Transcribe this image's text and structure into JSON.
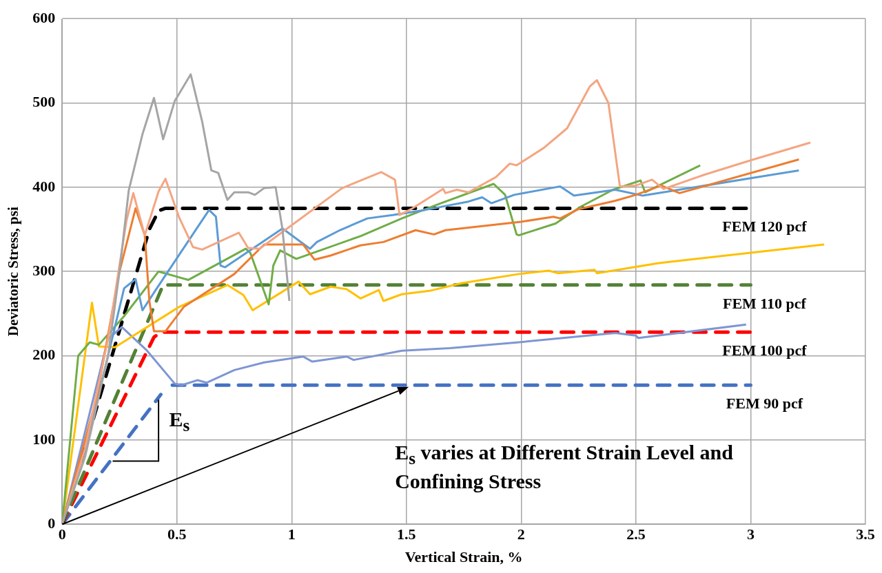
{
  "chart_data": {
    "type": "line",
    "xlabel": "Vertical Strain, %",
    "ylabel": "Deviatoric Stress, psi",
    "xlim": [
      0,
      3.5
    ],
    "xticks": [
      0,
      0.5,
      1,
      1.5,
      2,
      2.5,
      3,
      3.5
    ],
    "ylim": [
      0,
      600
    ],
    "yticks": [
      0,
      100,
      200,
      300,
      400,
      500,
      600
    ],
    "grid": true,
    "annotations": [
      {
        "text": "E$_{s}$",
        "x": 0.43,
        "y": 154
      },
      "E$_{s}$ varies at Different Strain Level and Confining Stress"
    ],
    "series": [
      {
        "color": "#a5a5a5",
        "x": [
          0,
          0.1,
          0.2,
          0.25,
          0.29,
          0.35,
          0.4,
          0.44,
          0.49,
          0.56,
          0.61,
          0.65,
          0.68,
          0.72,
          0.75,
          0.81,
          0.84,
          0.88,
          0.93,
          0.96,
          0.99
        ],
        "values": [
          0,
          80,
          200,
          300,
          396,
          463,
          506,
          457,
          502,
          534,
          478,
          420,
          417,
          385,
          394,
          394,
          391,
          399,
          400,
          350,
          265
        ]
      },
      {
        "color": "#f4a582",
        "x": [
          0,
          0.1,
          0.2,
          0.28,
          0.31,
          0.36,
          0.42,
          0.45,
          0.51,
          0.57,
          0.61,
          0.77,
          0.81,
          0.86,
          1.0,
          1.22,
          1.39,
          1.45,
          1.47,
          1.52,
          1.66,
          1.67,
          1.72,
          1.77,
          1.89,
          1.95,
          1.98,
          2.1,
          2.2,
          2.3,
          2.33,
          2.38,
          2.43,
          2.5,
          2.57,
          2.62,
          2.8,
          3.0,
          3.26
        ],
        "values": [
          0,
          90,
          220,
          360,
          393,
          343,
          395,
          410,
          364,
          329,
          326,
          346,
          328,
          327,
          355,
          399,
          418,
          409,
          367,
          374,
          398,
          393,
          397,
          394,
          412,
          428,
          426,
          447,
          470,
          520,
          527,
          500,
          401,
          402,
          409,
          398,
          415,
          432,
          453
        ]
      },
      {
        "color": "#ed7d31",
        "x": [
          0,
          0.15,
          0.25,
          0.32,
          0.36,
          0.38,
          0.4,
          0.45,
          0.53,
          0.75,
          0.88,
          1.05,
          1.1,
          1.17,
          1.3,
          1.4,
          1.54,
          1.62,
          1.67,
          2.0,
          2.14,
          2.17,
          2.25,
          2.41,
          2.5,
          2.61,
          2.69,
          3.21
        ],
        "values": [
          0,
          150,
          300,
          375,
          343,
          265,
          229,
          229,
          258,
          297,
          332,
          332,
          314,
          319,
          331,
          335,
          349,
          344,
          349,
          359,
          365,
          363,
          374,
          384,
          391,
          402,
          393,
          433
        ]
      },
      {
        "color": "#5b9bd5",
        "x": [
          0,
          0.1,
          0.2,
          0.27,
          0.32,
          0.35,
          0.41,
          0.64,
          0.67,
          0.69,
          0.71,
          0.96,
          1.08,
          1.11,
          1.21,
          1.33,
          1.44,
          1.58,
          1.77,
          1.83,
          1.87,
          1.97,
          2.17,
          2.23,
          2.41,
          2.53,
          3.21
        ],
        "values": [
          0,
          90,
          200,
          280,
          291,
          254,
          279,
          373,
          365,
          307,
          305,
          351,
          327,
          335,
          349,
          363,
          367,
          373,
          383,
          388,
          381,
          391,
          401,
          390,
          397,
          390,
          420
        ]
      },
      {
        "color": "#70ad47",
        "x": [
          0,
          0.07,
          0.12,
          0.16,
          0.27,
          0.42,
          0.55,
          0.8,
          0.82,
          0.9,
          0.92,
          0.95,
          1.02,
          1.3,
          1.48,
          1.64,
          1.88,
          1.93,
          1.98,
          1.99,
          2.15,
          2.26,
          2.4,
          2.52,
          2.54,
          2.78
        ],
        "values": [
          0,
          200,
          216,
          213,
          247,
          300,
          290,
          327,
          322,
          261,
          307,
          325,
          315,
          342,
          363,
          380,
          404,
          391,
          344,
          343,
          357,
          377,
          397,
          408,
          394,
          426
        ]
      },
      {
        "color": "#ffc000",
        "x": [
          0,
          0.13,
          0.16,
          0.23,
          0.51,
          0.72,
          0.79,
          0.83,
          1.03,
          1.08,
          1.17,
          1.24,
          1.3,
          1.38,
          1.4,
          1.48,
          1.6,
          1.74,
          1.99,
          2.12,
          2.16,
          2.32,
          2.33,
          2.6,
          3.32
        ],
        "values": [
          0,
          263,
          211,
          210,
          258,
          284,
          272,
          254,
          288,
          273,
          282,
          279,
          268,
          278,
          265,
          273,
          277,
          286,
          297,
          301,
          298,
          302,
          298,
          310,
          332
        ]
      },
      {
        "color": "#7f96d3",
        "x": [
          0,
          0.1,
          0.2,
          0.26,
          0.37,
          0.49,
          0.52,
          0.59,
          0.63,
          0.75,
          0.88,
          1.05,
          1.09,
          1.24,
          1.27,
          1.48,
          1.69,
          1.99,
          2.41,
          2.5,
          2.51,
          2.98
        ],
        "values": [
          0,
          110,
          220,
          234,
          206,
          167,
          165,
          171,
          168,
          183,
          192,
          199,
          193,
          199,
          195,
          206,
          209,
          216,
          227,
          224,
          221,
          237
        ]
      },
      {
        "name": "FEM 120 pcf",
        "color": "#000000",
        "line_style": "dashed",
        "x": [
          0,
          0.38,
          0.42,
          0.45,
          3.0
        ],
        "values": [
          0,
          350,
          372,
          375,
          375
        ]
      },
      {
        "name": "FEM 110 pcf",
        "color": "#538135",
        "line_style": "dashed",
        "x": [
          0,
          0.44,
          3.0
        ],
        "values": [
          0,
          284,
          284
        ]
      },
      {
        "name": "FEM 100 pcf",
        "color": "#ff0000",
        "line_style": "dashed",
        "x": [
          0,
          0.4,
          0.43,
          3.0
        ],
        "values": [
          0,
          222,
          228,
          228
        ]
      },
      {
        "name": "FEM 90 pcf",
        "color": "#4472c4",
        "line_style": "dashed",
        "x": [
          0,
          0.43,
          0.45,
          0.48,
          3.0
        ],
        "values": [
          0,
          154,
          null,
          165,
          165
        ]
      }
    ]
  }
}
